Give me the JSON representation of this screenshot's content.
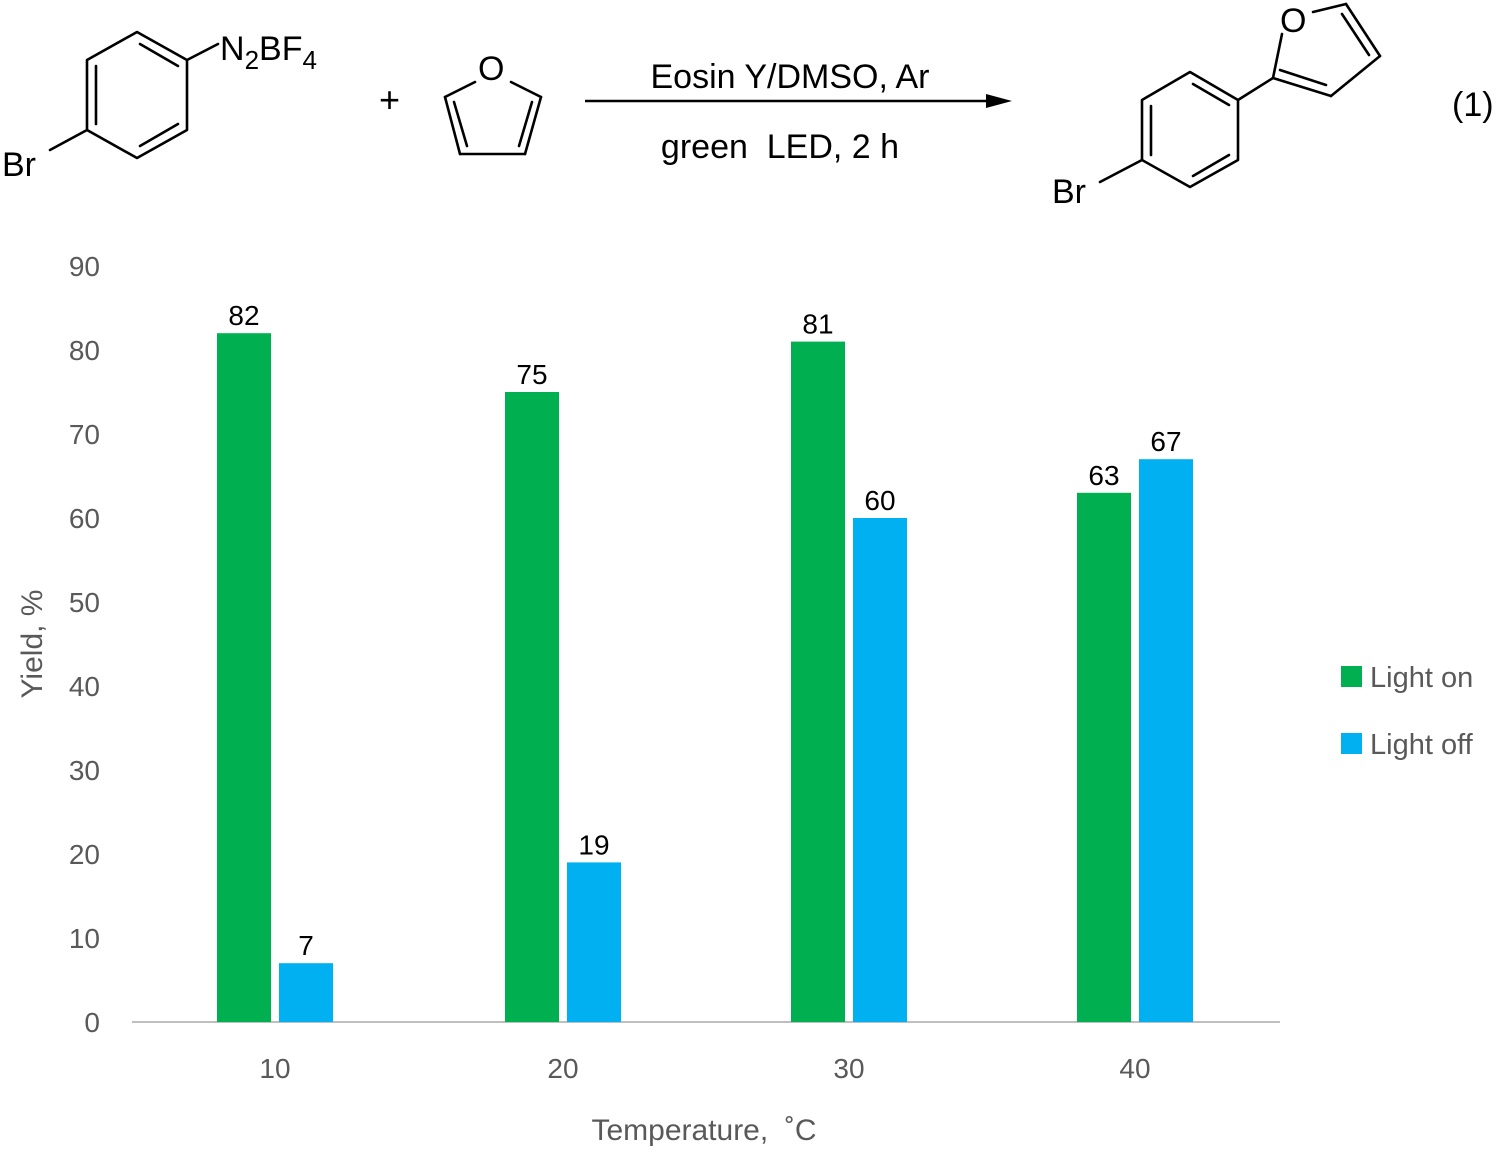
{
  "scheme": {
    "reactant_substituent": "Br",
    "reactant_group": "N2BF4",
    "plus": "+",
    "furan_heteroatom": "O",
    "conditions_top": "Eosin Y/DMSO, Ar",
    "conditions_bottom": "green  LED, 2 h",
    "product_substituent": "Br",
    "product_heteroatom": "O",
    "equation_number": "(1)"
  },
  "colors": {
    "light_on": "#00b050",
    "light_off": "#00b0f0",
    "axis": "#bfbfbf",
    "tick_text": "#595959"
  },
  "chart_data": {
    "type": "bar",
    "categories": [
      "10",
      "20",
      "30",
      "40"
    ],
    "series": [
      {
        "name": "Light on",
        "values": [
          82,
          75,
          81,
          63
        ],
        "labels": [
          "82",
          "75",
          "81",
          "63"
        ],
        "color": "#00b050"
      },
      {
        "name": "Light off",
        "values": [
          7,
          19,
          60,
          67
        ],
        "labels": [
          "7",
          "19",
          "60",
          "67"
        ],
        "color": "#00b0f0"
      }
    ],
    "xlabel": "Temperature,  ˚C",
    "ylabel": "Yield, %",
    "ylim": [
      0,
      90
    ],
    "yticks": [
      "0",
      "10",
      "20",
      "30",
      "40",
      "50",
      "60",
      "70",
      "80",
      "90"
    ],
    "grid": false,
    "legend": "right"
  }
}
